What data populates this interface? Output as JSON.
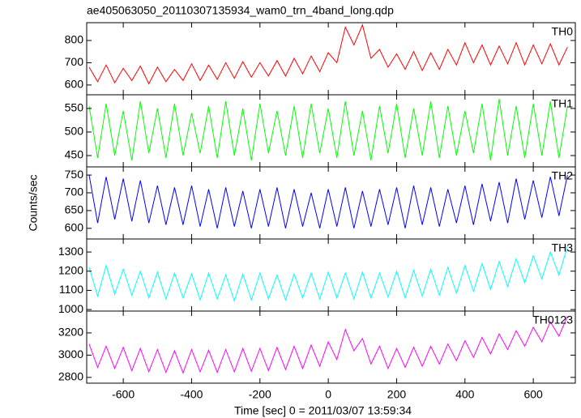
{
  "chart_data": [
    {
      "type": "line",
      "title": "ae405063050_20110307135934_wam0_trn_4band_long.qdp",
      "x": [
        -700,
        -675,
        -650,
        -625,
        -600,
        -575,
        -550,
        -525,
        -500,
        -475,
        -450,
        -425,
        -400,
        -375,
        -350,
        -325,
        -300,
        -275,
        -250,
        -225,
        -200,
        -175,
        -150,
        -125,
        -100,
        -75,
        -50,
        -25,
        0,
        25,
        50,
        75,
        100,
        125,
        150,
        175,
        200,
        225,
        250,
        275,
        300,
        325,
        350,
        375,
        400,
        425,
        450,
        475,
        500,
        525,
        550,
        575,
        600,
        625,
        650,
        675,
        700
      ],
      "series": [
        {
          "name": "TH0",
          "color": "#ff0000",
          "values": [
            680,
            615,
            690,
            610,
            675,
            620,
            685,
            605,
            680,
            615,
            670,
            620,
            695,
            620,
            690,
            625,
            700,
            630,
            705,
            635,
            700,
            640,
            710,
            640,
            720,
            650,
            730,
            660,
            745,
            700,
            860,
            780,
            870,
            720,
            760,
            680,
            740,
            670,
            750,
            665,
            745,
            670,
            760,
            690,
            790,
            700,
            780,
            690,
            775,
            695,
            790,
            690,
            780,
            695,
            785,
            690,
            770
          ]
        }
      ],
      "xlim": [
        -707,
        723
      ],
      "xticks": [
        -600,
        -400,
        -200,
        0,
        200,
        400,
        600
      ],
      "ylim": [
        556,
        880
      ],
      "yticks": [
        600,
        700,
        800
      ]
    },
    {
      "type": "line",
      "x": [
        -700,
        -675,
        -650,
        -625,
        -600,
        -575,
        -550,
        -525,
        -500,
        -475,
        -450,
        -425,
        -400,
        -375,
        -350,
        -325,
        -300,
        -275,
        -250,
        -225,
        -200,
        -175,
        -150,
        -125,
        -100,
        -75,
        -50,
        -25,
        0,
        25,
        50,
        75,
        100,
        125,
        150,
        175,
        200,
        225,
        250,
        275,
        300,
        325,
        350,
        375,
        400,
        425,
        450,
        475,
        500,
        525,
        550,
        575,
        600,
        625,
        650,
        675,
        700
      ],
      "series": [
        {
          "name": "TH1",
          "color": "#00ff00",
          "values": [
            555,
            445,
            560,
            450,
            545,
            440,
            565,
            455,
            550,
            445,
            560,
            450,
            540,
            455,
            555,
            445,
            565,
            450,
            550,
            440,
            560,
            455,
            545,
            450,
            555,
            445,
            560,
            455,
            550,
            445,
            565,
            450,
            545,
            440,
            555,
            455,
            560,
            445,
            550,
            450,
            565,
            445,
            555,
            450,
            545,
            455,
            560,
            440,
            570,
            450,
            555,
            445,
            560,
            450,
            565,
            445,
            555
          ]
        }
      ],
      "xlim": [
        -707,
        723
      ],
      "xticks": [
        -600,
        -400,
        -200,
        0,
        200,
        400,
        600
      ],
      "ylim": [
        426,
        579
      ],
      "yticks": [
        450,
        500,
        550
      ]
    },
    {
      "type": "line",
      "ylabel": "Counts/sec",
      "x": [
        -700,
        -675,
        -650,
        -625,
        -600,
        -575,
        -550,
        -525,
        -500,
        -475,
        -450,
        -425,
        -400,
        -375,
        -350,
        -325,
        -300,
        -275,
        -250,
        -225,
        -200,
        -175,
        -150,
        -125,
        -100,
        -75,
        -50,
        -25,
        0,
        25,
        50,
        75,
        100,
        125,
        150,
        175,
        200,
        225,
        250,
        275,
        300,
        325,
        350,
        375,
        400,
        425,
        450,
        475,
        500,
        525,
        550,
        575,
        600,
        625,
        650,
        675,
        700
      ],
      "series": [
        {
          "name": "TH2",
          "color": "#0000ff",
          "values": [
            750,
            615,
            745,
            625,
            740,
            620,
            735,
            615,
            720,
            610,
            715,
            610,
            720,
            605,
            710,
            600,
            715,
            605,
            705,
            600,
            710,
            605,
            715,
            600,
            710,
            605,
            700,
            600,
            710,
            605,
            715,
            600,
            705,
            605,
            710,
            610,
            715,
            600,
            720,
            610,
            715,
            605,
            710,
            615,
            720,
            610,
            725,
            620,
            730,
            615,
            740,
            625,
            735,
            630,
            745,
            635,
            750
          ]
        }
      ],
      "xlim": [
        -707,
        723
      ],
      "xticks": [
        -600,
        -400,
        -200,
        0,
        200,
        400,
        600
      ],
      "ylim": [
        570,
        773
      ],
      "yticks": [
        600,
        650,
        700,
        750
      ]
    },
    {
      "type": "line",
      "x": [
        -700,
        -675,
        -650,
        -625,
        -600,
        -575,
        -550,
        -525,
        -500,
        -475,
        -450,
        -425,
        -400,
        -375,
        -350,
        -325,
        -300,
        -275,
        -250,
        -225,
        -200,
        -175,
        -150,
        -125,
        -100,
        -75,
        -50,
        -25,
        0,
        25,
        50,
        75,
        100,
        125,
        150,
        175,
        200,
        225,
        250,
        275,
        300,
        325,
        350,
        375,
        400,
        425,
        450,
        475,
        500,
        525,
        550,
        575,
        600,
        625,
        650,
        675,
        700
      ],
      "series": [
        {
          "name": "TH3",
          "color": "#00ffff",
          "values": [
            1220,
            1070,
            1230,
            1080,
            1210,
            1075,
            1200,
            1060,
            1195,
            1055,
            1190,
            1060,
            1185,
            1050,
            1190,
            1055,
            1180,
            1045,
            1185,
            1050,
            1190,
            1055,
            1180,
            1050,
            1185,
            1060,
            1190,
            1055,
            1195,
            1060,
            1190,
            1055,
            1195,
            1060,
            1190,
            1065,
            1200,
            1060,
            1205,
            1070,
            1210,
            1075,
            1220,
            1085,
            1230,
            1095,
            1240,
            1105,
            1250,
            1120,
            1265,
            1140,
            1280,
            1160,
            1300,
            1180,
            1330
          ]
        }
      ],
      "xlim": [
        -707,
        723
      ],
      "xticks": [
        -600,
        -400,
        -200,
        0,
        200,
        400,
        600
      ],
      "ylim": [
        992,
        1368
      ],
      "yticks": [
        1000,
        1100,
        1200,
        1300
      ]
    },
    {
      "type": "line",
      "xlabel": "Time [sec] 0 = 2011/03/07 13:59:34",
      "x": [
        -700,
        -675,
        -650,
        -625,
        -600,
        -575,
        -550,
        -525,
        -500,
        -475,
        -450,
        -425,
        -400,
        -375,
        -350,
        -325,
        -300,
        -275,
        -250,
        -225,
        -200,
        -175,
        -150,
        -125,
        -100,
        -75,
        -50,
        -25,
        0,
        25,
        50,
        75,
        100,
        125,
        150,
        175,
        200,
        225,
        250,
        275,
        300,
        325,
        350,
        375,
        400,
        425,
        450,
        475,
        500,
        525,
        550,
        575,
        600,
        625,
        650,
        675,
        700
      ],
      "series": [
        {
          "name": "TH0123",
          "color": "#ff00ff",
          "values": [
            3100,
            2890,
            3080,
            2880,
            3070,
            2860,
            3060,
            2850,
            3050,
            2845,
            3040,
            2840,
            3050,
            2850,
            3045,
            2845,
            3050,
            2850,
            3060,
            2855,
            3060,
            2860,
            3070,
            2870,
            3080,
            2880,
            3090,
            2900,
            3120,
            2960,
            3230,
            3040,
            3150,
            2920,
            3080,
            2880,
            3060,
            2890,
            3070,
            2900,
            3080,
            2920,
            3100,
            2950,
            3130,
            2980,
            3160,
            3010,
            3190,
            3050,
            3220,
            3080,
            3250,
            3120,
            3300,
            3170,
            3350
          ]
        }
      ],
      "xlim": [
        -707,
        723
      ],
      "xticks": [
        -600,
        -400,
        -200,
        0,
        200,
        400,
        600
      ],
      "ylim": [
        2748,
        3396
      ],
      "yticks": [
        2800,
        3000,
        3200
      ]
    }
  ]
}
